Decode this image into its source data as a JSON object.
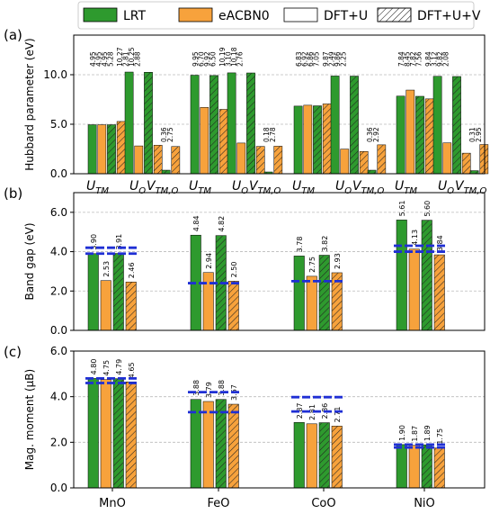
{
  "legend": {
    "items": [
      {
        "label": "LRT",
        "kind": "LRT"
      },
      {
        "label": "eACBN0",
        "kind": "eACBN0"
      },
      {
        "label": "DFT+U",
        "kind": "plain"
      },
      {
        "label": "DFT+U+V",
        "kind": "hatch"
      }
    ]
  },
  "colors": {
    "green": "#2e9a2e",
    "orange": "#f7a23c",
    "ref_line": "#1f2fd4",
    "grid": "#bbbbbb"
  },
  "materials": [
    "MnO",
    "FeO",
    "CoO",
    "NiO"
  ],
  "chart_data": [
    {
      "panel": "(a)",
      "type": "bar",
      "ylabel": "Hubbard parameter (eV)",
      "ylim": [
        0,
        14
      ],
      "yticks": [
        "0.0",
        "5.0",
        "10.0"
      ],
      "ytick_values": [
        0,
        5,
        10
      ],
      "group_labels": [
        "U_TM",
        "U_O",
        "V_TM,O"
      ],
      "series": [
        {
          "name": "LRT DFT+U",
          "method": "LRT",
          "hatch": false
        },
        {
          "name": "eACBN0 DFT+U",
          "method": "eACBN0",
          "hatch": false
        },
        {
          "name": "LRT DFT+U+V",
          "method": "LRT",
          "hatch": true
        },
        {
          "name": "eACBN0 DFT+U+V",
          "method": "eACBN0",
          "hatch": true
        }
      ],
      "data": {
        "MnO": {
          "U_TM": [
            "4.95",
            "4.95",
            "4.95",
            "5.28"
          ],
          "U_O": [
            "10.27",
            "2.81",
            "10.25",
            "2.88"
          ],
          "V_TM,O": [
            "0.36",
            "2.75"
          ]
        },
        "FeO": {
          "U_TM": [
            "9.95",
            "6.70",
            "9.92",
            "6.50"
          ],
          "U_O": [
            "10.19",
            "3.10",
            "10.18",
            "2.76"
          ],
          "V_TM,O": [
            "0.18",
            "2.78"
          ]
        },
        "CoO": {
          "U_TM": [
            "6.83",
            "6.92",
            "6.86",
            "7.05"
          ],
          "U_O": [
            "9.87",
            "2.49",
            "9.86",
            "2.25"
          ],
          "V_TM,O": [
            "0.36",
            "2.92"
          ]
        },
        "NiO": {
          "U_TM": [
            "7.84",
            "8.45",
            "7.82",
            "7.56"
          ],
          "U_O": [
            "9.84",
            "3.12",
            "9.82",
            "2.08"
          ],
          "V_TM,O": [
            "0.31",
            "2.95"
          ]
        }
      }
    },
    {
      "panel": "(b)",
      "type": "bar",
      "ylabel": "Band gap (eV)",
      "ylim": [
        0,
        7
      ],
      "yticks": [
        "0.0",
        "2.0",
        "4.0",
        "6.0"
      ],
      "ytick_values": [
        0,
        2,
        4,
        6
      ],
      "categories": [
        "MnO",
        "FeO",
        "CoO",
        "NiO"
      ],
      "series": [
        {
          "name": "LRT DFT+U",
          "values": [
            "3.90",
            "4.84",
            "3.78",
            "5.61"
          ]
        },
        {
          "name": "eACBN0 DFT+U",
          "values": [
            "2.53",
            "2.94",
            "2.75",
            "4.13"
          ]
        },
        {
          "name": "LRT DFT+U+V",
          "values": [
            "3.91",
            "4.82",
            "3.82",
            "5.60"
          ]
        },
        {
          "name": "eACBN0 DFT+U+V",
          "values": [
            "2.46",
            "2.50",
            "2.93",
            "3.84"
          ]
        }
      ],
      "experimental_range": [
        [
          3.9,
          4.2
        ],
        [
          2.4,
          2.4
        ],
        [
          2.5,
          2.5
        ],
        [
          4.0,
          4.3
        ]
      ]
    },
    {
      "panel": "(c)",
      "type": "bar",
      "ylabel": "Mag. moment (μB)",
      "ylim": [
        0,
        6
      ],
      "yticks": [
        "0.0",
        "2.0",
        "4.0",
        "6.0"
      ],
      "ytick_values": [
        0,
        2,
        4,
        6
      ],
      "categories": [
        "MnO",
        "FeO",
        "CoO",
        "NiO"
      ],
      "series": [
        {
          "name": "LRT DFT+U",
          "values": [
            "4.80",
            "3.88",
            "2.87",
            "1.90"
          ]
        },
        {
          "name": "eACBN0 DFT+U",
          "values": [
            "4.75",
            "3.79",
            "2.81",
            "1.87"
          ]
        },
        {
          "name": "LRT DFT+U+V",
          "values": [
            "4.79",
            "3.88",
            "2.86",
            "1.89"
          ]
        },
        {
          "name": "eACBN0 DFT+U+V",
          "values": [
            "4.65",
            "3.67",
            "2.71",
            "1.75"
          ]
        }
      ],
      "experimental_range": [
        [
          4.6,
          4.8
        ],
        [
          3.32,
          4.2
        ],
        [
          3.35,
          3.98
        ],
        [
          1.77,
          1.9
        ]
      ]
    }
  ]
}
